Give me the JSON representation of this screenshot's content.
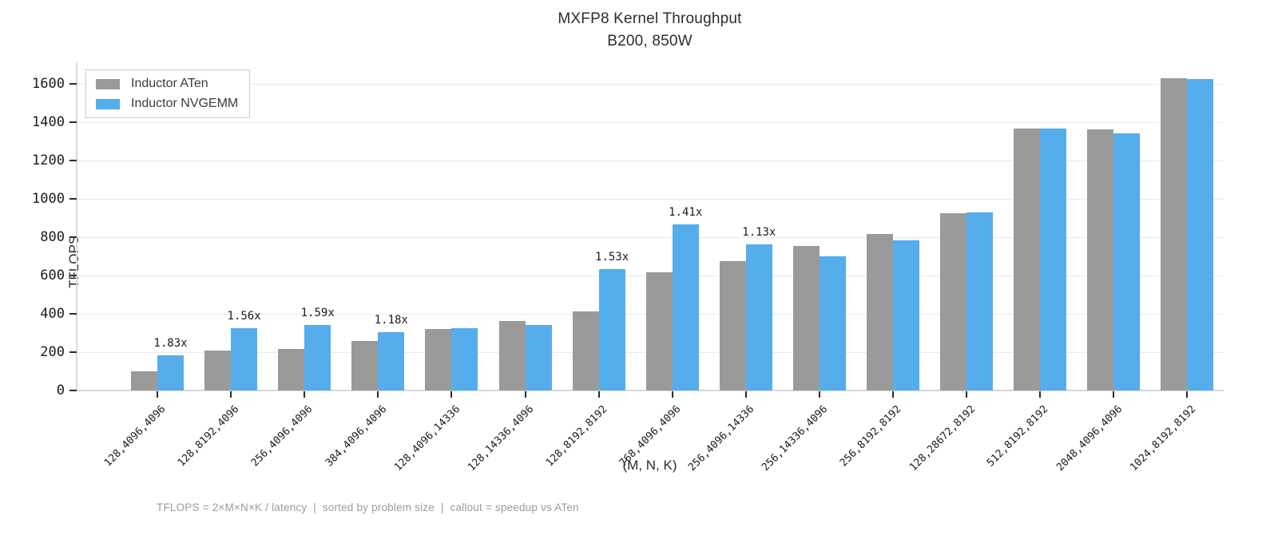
{
  "title": {
    "line1": "MXFP8 Kernel Throughput",
    "line2": "B200, 850W"
  },
  "legend": [
    {
      "label": "Inductor ATen",
      "color": "#9a9a9a"
    },
    {
      "label": "Inductor NVGEMM",
      "color": "#55adeb"
    }
  ],
  "footnote": "TFLOPS = 2×M×N×K / latency  |  sorted by problem size  |  callout = speedup vs ATen",
  "chart_data": {
    "type": "bar",
    "title": "MXFP8 Kernel Throughput",
    "subtitle": "B200, 850W",
    "xlabel": "(M, N, K)",
    "ylabel": "TFLOPS",
    "ylim": [
      0,
      1712
    ],
    "yticks": [
      0,
      200,
      400,
      600,
      800,
      1000,
      1200,
      1400,
      1600
    ],
    "grid": true,
    "legend_position": "upper-left",
    "categories": [
      "128,4096,4096",
      "128,8192,4096",
      "256,4096,4096",
      "384,4096,4096",
      "128,4096,14336",
      "128,14336,4096",
      "128,8192,8192",
      "768,4096,4096",
      "256,4096,14336",
      "256,14336,4096",
      "256,8192,8192",
      "128,28672,8192",
      "512,8192,8192",
      "2048,4096,4096",
      "1024,8192,8192"
    ],
    "series": [
      {
        "name": "Inductor ATen",
        "color": "#9a9a9a",
        "values": [
          100,
          208,
          216,
          258,
          320,
          363,
          414,
          616,
          675,
          753,
          816,
          926,
          1367,
          1363,
          1629
        ]
      },
      {
        "name": "Inductor NVGEMM",
        "color": "#55adeb",
        "values": [
          183,
          324,
          343,
          304,
          326,
          341,
          633,
          868,
          763,
          700,
          784,
          928,
          1367,
          1343,
          1624
        ]
      }
    ],
    "callouts": [
      "1.83x",
      "1.56x",
      "1.59x",
      "1.18x",
      null,
      null,
      "1.53x",
      "1.41x",
      "1.13x",
      null,
      null,
      null,
      null,
      null,
      null
    ]
  }
}
